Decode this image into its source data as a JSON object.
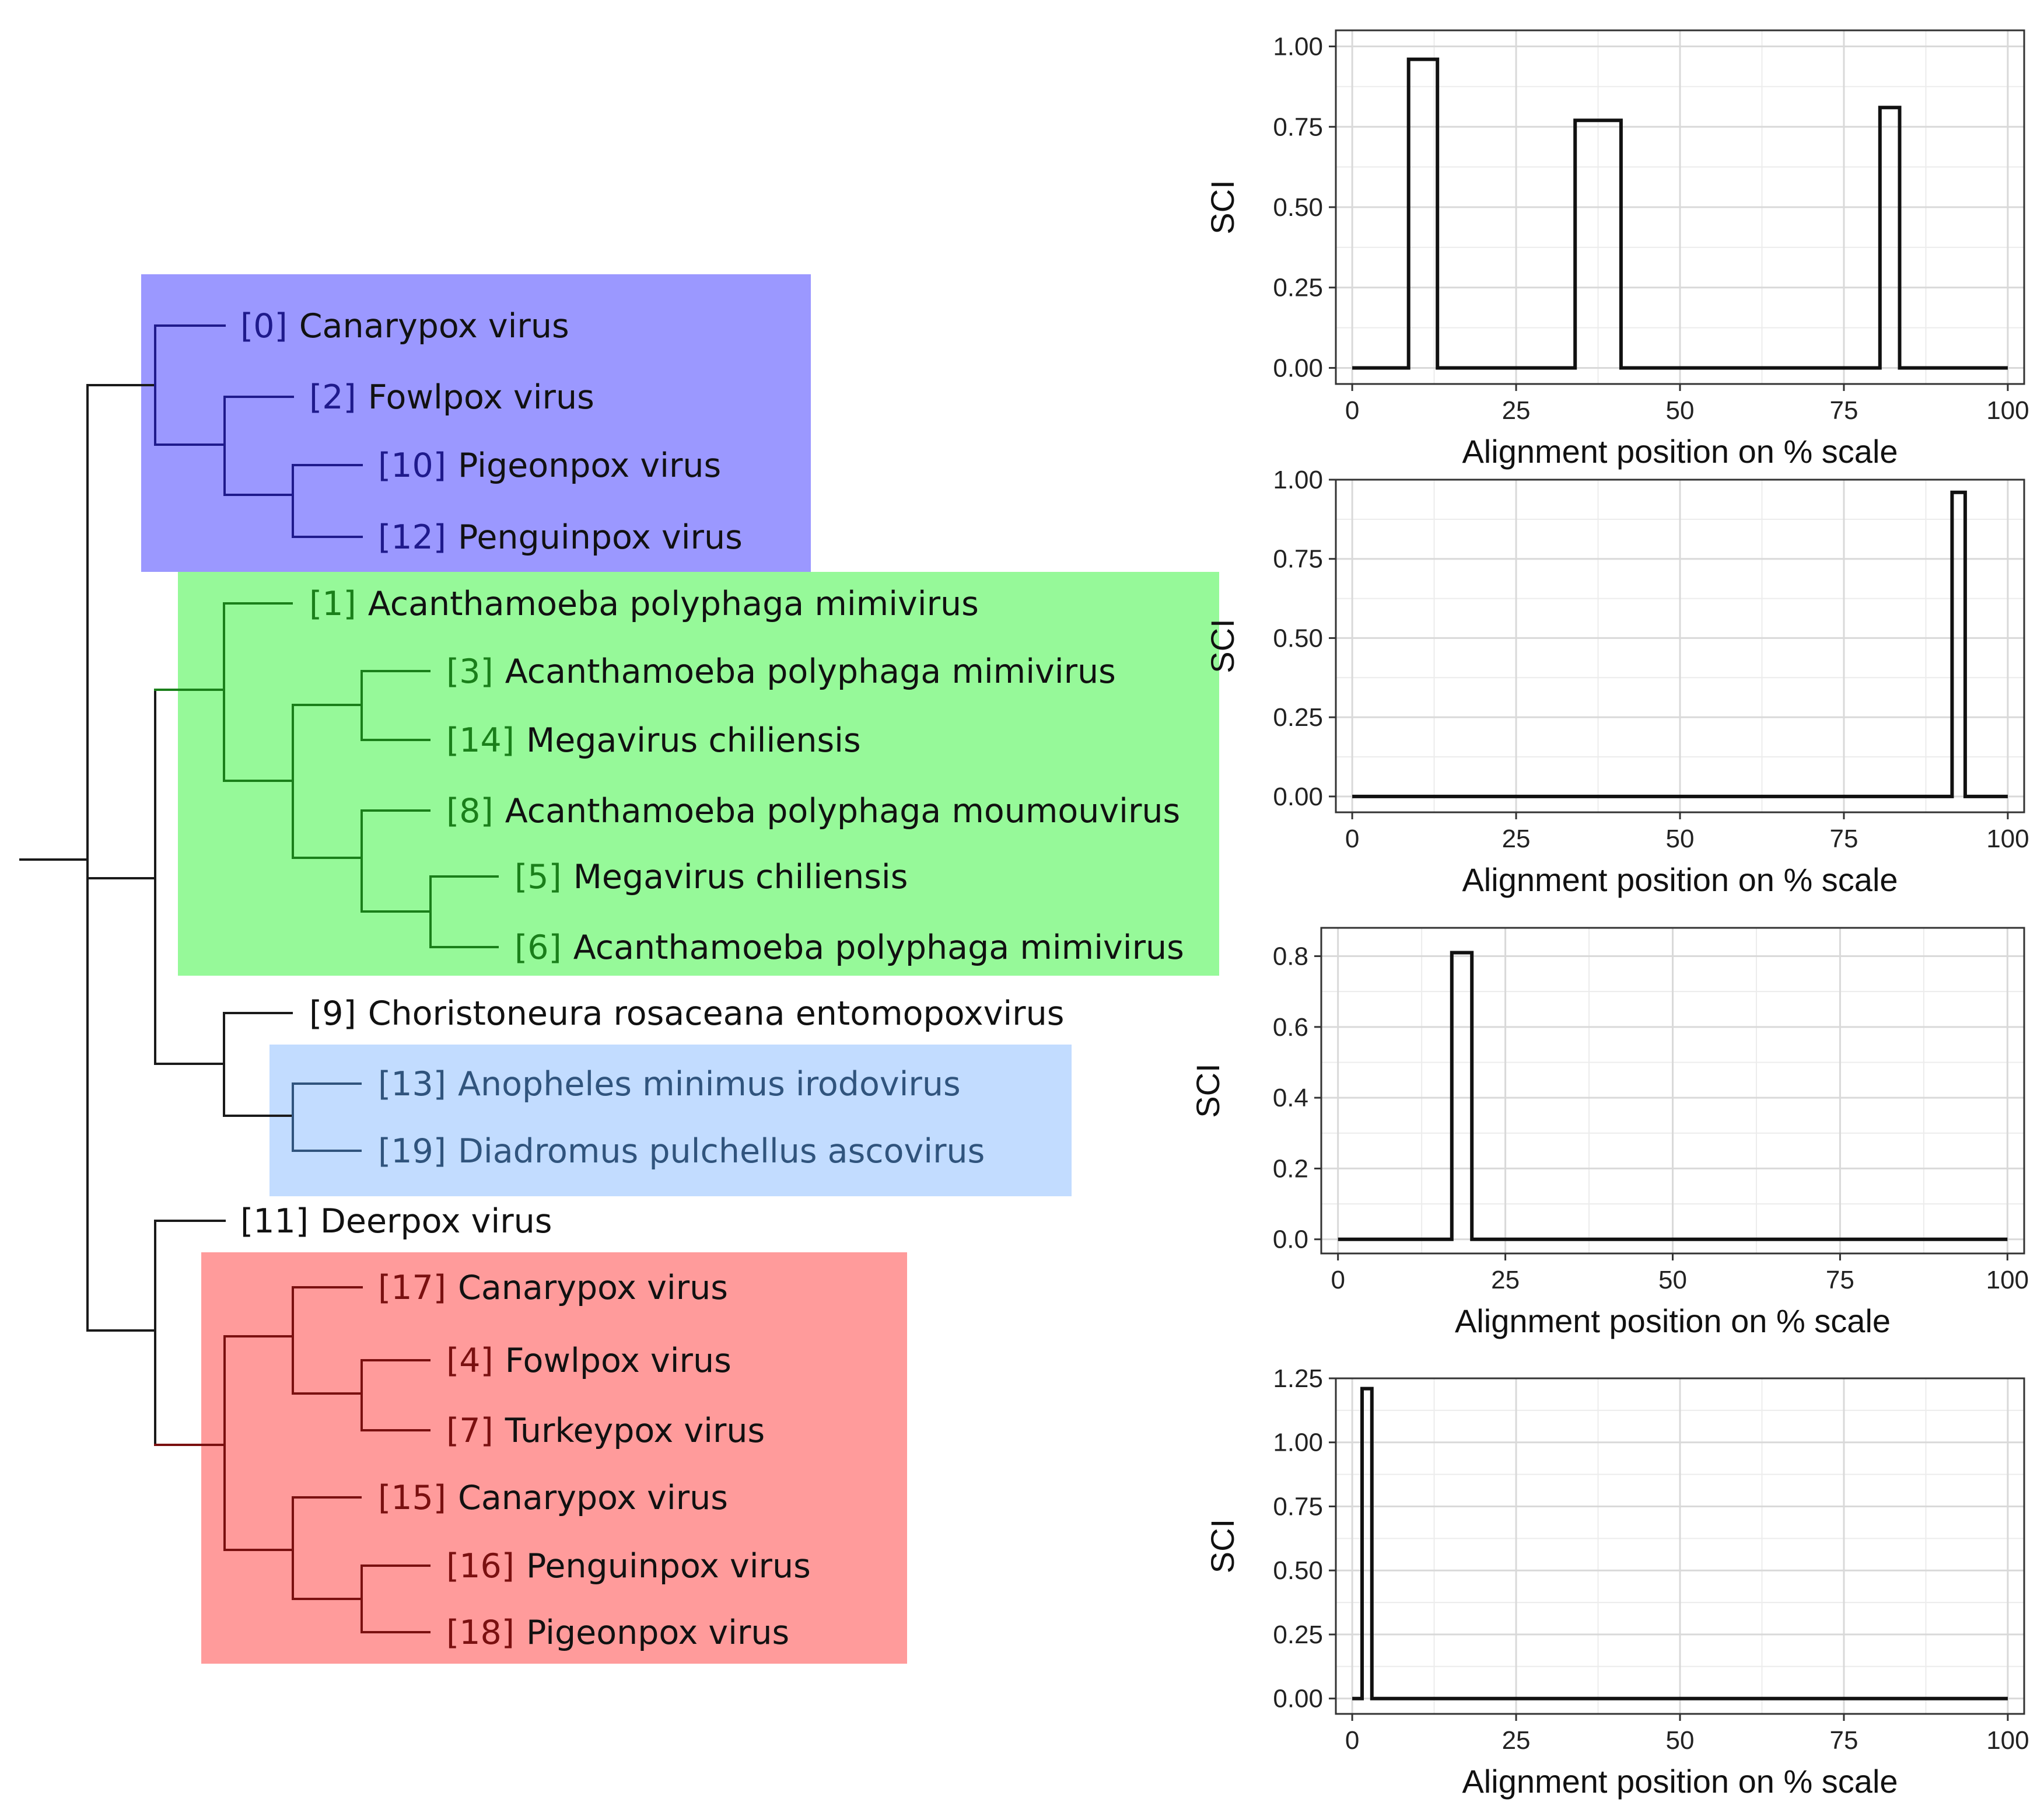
{
  "colors": {
    "purple_box": "#9b98ff",
    "purple_text": "#1f1a8c",
    "purple_line": "#1f1a8c",
    "green_box": "#96f999",
    "green_text": "#1a7f1a",
    "green_line": "#1a7f1a",
    "blue_box": "#c2dcff",
    "blue_text": "#30547d",
    "blue_line": "#30547d",
    "red_box": "#ff9b9b",
    "red_text": "#7a1010",
    "red_line": "#7a1010",
    "black_line": "#1a1a1a",
    "name_text": "#111111",
    "grid": "#d9d9d9",
    "panel_border": "#333333",
    "trace": "#111111"
  },
  "tree": {
    "leaves": [
      {
        "id": "[0]",
        "name": "Canarypox virus",
        "group": "purple"
      },
      {
        "id": "[2]",
        "name": "Fowlpox virus",
        "group": "purple"
      },
      {
        "id": "[10]",
        "name": "Pigeonpox virus",
        "group": "purple"
      },
      {
        "id": "[12]",
        "name": "Penguinpox virus",
        "group": "purple"
      },
      {
        "id": "[1]",
        "name": "Acanthamoeba polyphaga mimivirus",
        "group": "green"
      },
      {
        "id": "[3]",
        "name": "Acanthamoeba polyphaga mimivirus",
        "group": "green"
      },
      {
        "id": "[14]",
        "name": "Megavirus chiliensis",
        "group": "green"
      },
      {
        "id": "[8]",
        "name": "Acanthamoeba polyphaga moumouvirus",
        "group": "green"
      },
      {
        "id": "[5]",
        "name": "Megavirus chiliensis",
        "group": "green"
      },
      {
        "id": "[6]",
        "name": "Acanthamoeba polyphaga mimivirus",
        "group": "green"
      },
      {
        "id": "[9]",
        "name": "Choristoneura rosaceana entomopoxvirus",
        "group": "none"
      },
      {
        "id": "[13]",
        "name": "Anopheles minimus irodovirus",
        "group": "blue"
      },
      {
        "id": "[19]",
        "name": "Diadromus pulchellus ascovirus",
        "group": "blue"
      },
      {
        "id": "[11]",
        "name": "Deerpox virus",
        "group": "none"
      },
      {
        "id": "[17]",
        "name": "Canarypox virus",
        "group": "red"
      },
      {
        "id": "[4]",
        "name": "Fowlpox virus",
        "group": "red"
      },
      {
        "id": "[7]",
        "name": "Turkeypox virus",
        "group": "red"
      },
      {
        "id": "[15]",
        "name": "Canarypox virus",
        "group": "red"
      },
      {
        "id": "[16]",
        "name": "Penguinpox virus",
        "group": "red"
      },
      {
        "id": "[18]",
        "name": "Pigeonpox virus",
        "group": "red"
      }
    ]
  },
  "chart_data": [
    {
      "type": "line",
      "title": "",
      "xlabel": "Alignment position on % scale",
      "ylabel": "SCI",
      "xlim": [
        -2.5,
        102.5
      ],
      "ylim": [
        -0.05,
        1.05
      ],
      "xticks": [
        0,
        25,
        50,
        75,
        100
      ],
      "xtick_labels": [
        "0",
        "25",
        "50",
        "75",
        "100"
      ],
      "yticks": [
        0,
        0.25,
        0.5,
        0.75,
        1.0
      ],
      "ytick_labels": [
        "0.00",
        "0.25",
        "0.50",
        "0.75",
        "1.00"
      ],
      "grid": true,
      "series": [
        {
          "name": "SCI",
          "x": [
            0,
            8.6,
            8.6,
            13,
            13,
            34,
            34,
            41,
            41,
            80.5,
            80.5,
            83.5,
            83.5,
            100
          ],
          "y": [
            0,
            0,
            0.96,
            0.96,
            0,
            0,
            0.77,
            0.77,
            0,
            0,
            0.81,
            0.81,
            0,
            0
          ]
        }
      ]
    },
    {
      "type": "line",
      "title": "",
      "xlabel": "Alignment position on % scale",
      "ylabel": "SCI",
      "xlim": [
        -2.5,
        102.5
      ],
      "ylim": [
        -0.05,
        1.0
      ],
      "xticks": [
        0,
        25,
        50,
        75,
        100
      ],
      "xtick_labels": [
        "0",
        "25",
        "50",
        "75",
        "100"
      ],
      "yticks": [
        0,
        0.25,
        0.5,
        0.75,
        1.0
      ],
      "ytick_labels": [
        "0.00",
        "0.25",
        "0.50",
        "0.75",
        "1.00"
      ],
      "grid": true,
      "series": [
        {
          "name": "SCI",
          "x": [
            0,
            91.5,
            91.5,
            93.5,
            93.5,
            100
          ],
          "y": [
            0,
            0,
            0.96,
            0.96,
            0,
            0
          ]
        }
      ]
    },
    {
      "type": "line",
      "title": "",
      "xlabel": "Alignment position on % scale",
      "ylabel": "SCI",
      "xlim": [
        -2.5,
        102.5
      ],
      "ylim": [
        -0.04,
        0.88
      ],
      "xticks": [
        0,
        25,
        50,
        75,
        100
      ],
      "xtick_labels": [
        "0",
        "25",
        "50",
        "75",
        "100"
      ],
      "yticks": [
        0,
        0.2,
        0.4,
        0.6,
        0.8
      ],
      "ytick_labels": [
        "0.0",
        "0.2",
        "0.4",
        "0.6",
        "0.8"
      ],
      "grid": true,
      "series": [
        {
          "name": "SCI",
          "x": [
            0,
            17,
            17,
            20,
            20,
            100
          ],
          "y": [
            0,
            0,
            0.81,
            0.81,
            0,
            0
          ]
        }
      ]
    },
    {
      "type": "line",
      "title": "",
      "xlabel": "Alignment position on % scale",
      "ylabel": "SCI",
      "xlim": [
        -2.5,
        102.5
      ],
      "ylim": [
        -0.06,
        1.25
      ],
      "xticks": [
        0,
        25,
        50,
        75,
        100
      ],
      "xtick_labels": [
        "0",
        "25",
        "50",
        "75",
        "100"
      ],
      "yticks": [
        0,
        0.25,
        0.5,
        0.75,
        1.0,
        1.25
      ],
      "ytick_labels": [
        "0.00",
        "0.25",
        "0.50",
        "0.75",
        "1.00",
        "1.25"
      ],
      "grid": true,
      "series": [
        {
          "name": "SCI",
          "x": [
            0,
            1.5,
            1.5,
            3,
            3,
            100
          ],
          "y": [
            0,
            0,
            1.21,
            1.21,
            0,
            0
          ]
        }
      ]
    }
  ]
}
